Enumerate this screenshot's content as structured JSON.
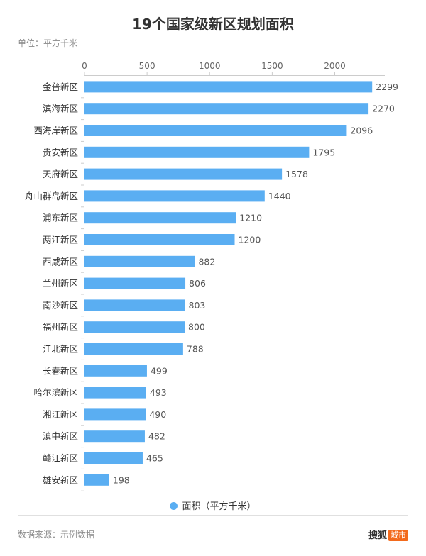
{
  "chart_data": {
    "type": "bar",
    "orientation": "horizontal",
    "title": "19个国家级新区规划面积",
    "unit_label": "单位：平方千米",
    "categories": [
      "金普新区",
      "滨海新区",
      "西海岸新区",
      "贵安新区",
      "天府新区",
      "舟山群岛新区",
      "浦东新区",
      "两江新区",
      "西咸新区",
      "兰州新区",
      "南沙新区",
      "福州新区",
      "江北新区",
      "长春新区",
      "哈尔滨新区",
      "湘江新区",
      "滇中新区",
      "赣江新区",
      "雄安新区"
    ],
    "series": [
      {
        "name": "面积（平方千米）",
        "values": [
          2299,
          2270,
          2096,
          1795,
          1578,
          1440,
          1210,
          1200,
          882,
          806,
          803,
          800,
          788,
          499,
          493,
          490,
          482,
          465,
          198
        ]
      }
    ],
    "x_ticks": [
      0,
      500,
      1000,
      1500,
      2000
    ],
    "xlim": [
      0,
      2400
    ],
    "legend_position": "bottom",
    "grid": false,
    "bar_color": "#5aaef2"
  },
  "footer": {
    "source": "数据来源：示例数据",
    "logo_text": "搜狐",
    "logo_badge": "城市"
  }
}
